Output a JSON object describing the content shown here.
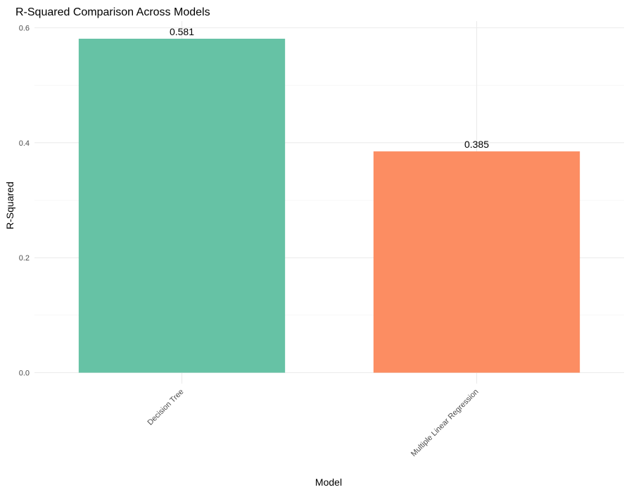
{
  "chart_data": {
    "type": "bar",
    "title": "R-Squared Comparison Across Models",
    "xlabel": "Model",
    "ylabel": "R-Squared",
    "categories": [
      "Decision Tree",
      "Multiple Linear Regression"
    ],
    "values": [
      0.581,
      0.385
    ],
    "value_labels": [
      "0.581",
      "0.385"
    ],
    "colors": [
      "#66c2a5",
      "#fc8d62"
    ],
    "ylim": [
      0,
      0.6
    ],
    "yticks": [
      0.0,
      0.2,
      0.4,
      0.6
    ],
    "ytick_labels": [
      "0.0",
      "0.2",
      "0.4",
      "0.6"
    ],
    "grid": true,
    "legend": "none"
  }
}
